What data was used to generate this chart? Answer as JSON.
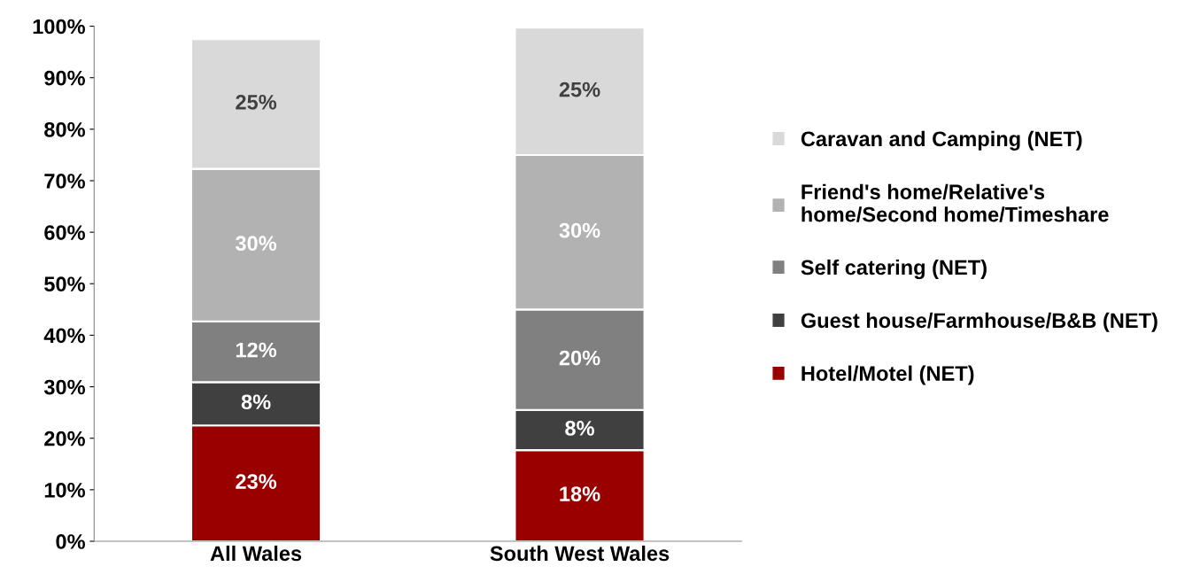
{
  "chart_data": {
    "type": "bar",
    "stacked": true,
    "categories": [
      "All Wales",
      "South West Wales"
    ],
    "series": [
      {
        "name": "Hotel/Motel (NET)",
        "color": "#990000",
        "values": [
          22.5,
          17.7
        ],
        "value_labels": [
          "23%",
          "18%"
        ]
      },
      {
        "name": "Guest house/Farmhouse/B&B (NET)",
        "color": "#404040",
        "values": [
          8.4,
          7.8
        ],
        "value_labels": [
          "8%",
          "8%"
        ]
      },
      {
        "name": "Self catering (NET)",
        "color": "#808080",
        "values": [
          11.8,
          19.5
        ],
        "value_labels": [
          "12%",
          "20%"
        ]
      },
      {
        "name": "Friend's home/Relative's\nhome/Second home/Timeshare",
        "color": "#b2b2b2",
        "values": [
          29.6,
          30.0
        ],
        "value_labels": [
          "30%",
          "30%"
        ]
      },
      {
        "name": "Caravan and Camping (NET)",
        "color": "#d9d9d9",
        "values": [
          25.2,
          24.7
        ],
        "value_labels": [
          "25%",
          "25%"
        ]
      }
    ],
    "ylim": [
      0,
      100
    ],
    "yticks": [
      {
        "value": 0,
        "label": "0%"
      },
      {
        "value": 10,
        "label": "10%"
      },
      {
        "value": 20,
        "label": "20%"
      },
      {
        "value": 30,
        "label": "30%"
      },
      {
        "value": 40,
        "label": "40%"
      },
      {
        "value": 50,
        "label": "50%"
      },
      {
        "value": 60,
        "label": "60%"
      },
      {
        "value": 70,
        "label": "70%"
      },
      {
        "value": 80,
        "label": "80%"
      },
      {
        "value": 90,
        "label": "90%"
      },
      {
        "value": 100,
        "label": "100%"
      }
    ],
    "grid": false,
    "legend": "right"
  }
}
